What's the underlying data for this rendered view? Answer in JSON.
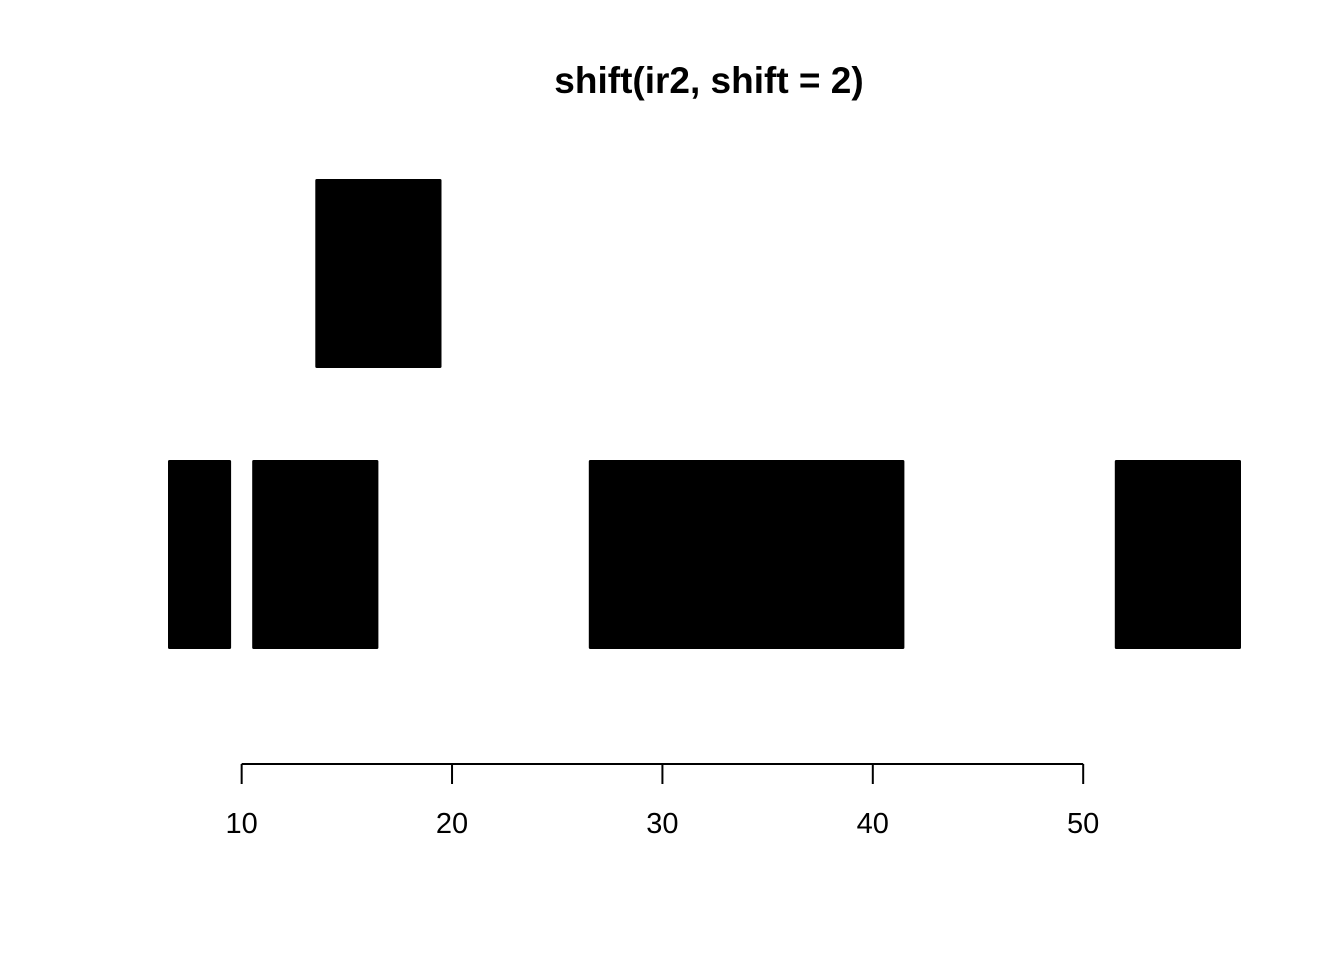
{
  "chart_data": {
    "type": "bar",
    "title": "shift(ir2, shift = 2)",
    "xlabel": "",
    "ylabel": "",
    "xlim": [
      6.0,
      58.0
    ],
    "x_ticks": [
      10,
      20,
      30,
      40,
      50
    ],
    "x_tick_labels": [
      "10",
      "20",
      "30",
      "40",
      "50"
    ],
    "grid": false,
    "legend": "none",
    "bar_color": "#000000",
    "ranges": [
      {
        "start": 7,
        "end": 9,
        "width": 3,
        "level": 1
      },
      {
        "start": 11,
        "end": 16,
        "width": 6,
        "level": 1
      },
      {
        "start": 14,
        "end": 19,
        "width": 6,
        "level": 2
      },
      {
        "start": 27,
        "end": 41,
        "width": 15,
        "level": 1
      },
      {
        "start": 52,
        "end": 57,
        "width": 6,
        "level": 1
      }
    ]
  }
}
